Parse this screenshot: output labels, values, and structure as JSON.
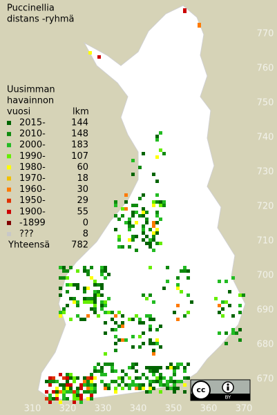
{
  "title": [
    "Puccinellia",
    "distans -ryhmä"
  ],
  "legend": {
    "heading": [
      "Uusimman",
      "havainnon",
      "vuosi"
    ],
    "count_heading": "lkm",
    "rows": [
      {
        "label": "2015-",
        "count": 144,
        "color": "#006400"
      },
      {
        "label": "2010-",
        "count": 148,
        "color": "#0f8a0f"
      },
      {
        "label": "2000-",
        "count": 183,
        "color": "#22bb22"
      },
      {
        "label": "1990-",
        "count": 107,
        "color": "#66ee00"
      },
      {
        "label": "1980-",
        "count": 60,
        "color": "#ffff00"
      },
      {
        "label": "1970-",
        "count": 18,
        "color": "#f0c000"
      },
      {
        "label": "1960-",
        "count": 30,
        "color": "#ff7a00"
      },
      {
        "label": "1950-",
        "count": 29,
        "color": "#e03000"
      },
      {
        "label": "1900-",
        "count": 55,
        "color": "#cc0000"
      },
      {
        "label": "-1899",
        "count": 0,
        "color": "#800000"
      },
      {
        "label": "???",
        "count": 8,
        "color": "#c8c8c8"
      }
    ],
    "total_label": "Yhteensä",
    "total": 782
  },
  "x_axis": [
    310,
    320,
    330,
    340,
    350,
    360,
    370
  ],
  "y_axis": [
    670,
    680,
    690,
    700,
    710,
    720,
    730,
    740,
    750,
    760,
    770
  ],
  "license": "BY"
}
